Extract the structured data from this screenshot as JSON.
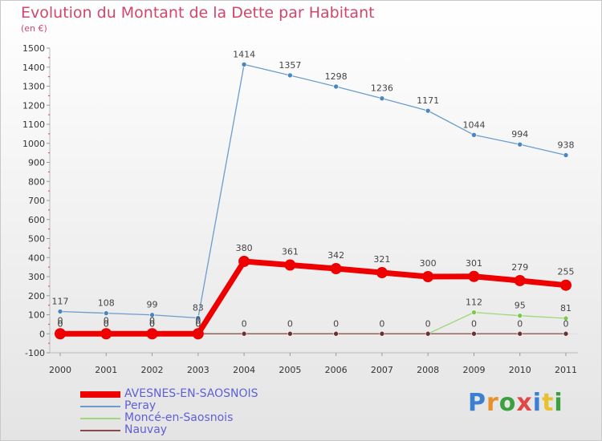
{
  "chart_data": {
    "type": "line",
    "title": "Evolution du Montant de la Dette par Habitant",
    "subtitle": "(en €)",
    "categories": [
      "2000",
      "2001",
      "2002",
      "2003",
      "2004",
      "2005",
      "2006",
      "2007",
      "2008",
      "2009",
      "2010",
      "2011"
    ],
    "ylim": [
      -100,
      1500
    ],
    "yticks": [
      -100,
      0,
      100,
      200,
      300,
      400,
      500,
      600,
      700,
      800,
      900,
      1000,
      1100,
      1200,
      1300,
      1400,
      1500
    ],
    "grid": false,
    "legend_position": "bottom-left",
    "series": [
      {
        "name": "Peray",
        "color": "#6b9ccb",
        "marker": "#4a86c0",
        "values": [
          117,
          108,
          99,
          83,
          1414,
          1357,
          1298,
          1236,
          1171,
          1044,
          994,
          938
        ],
        "labels": [
          "117",
          "108",
          "99",
          "83",
          "1414",
          "1357",
          "1298",
          "1236",
          "1171",
          "1044",
          "994",
          "938"
        ]
      },
      {
        "name": "Moncé-en-Saosnois",
        "color": "#9ed87a",
        "marker": "#7cc84a",
        "values": [
          0,
          0,
          0,
          0,
          0,
          0,
          0,
          0,
          0,
          112,
          95,
          81
        ],
        "labels": [
          "0",
          "0",
          "0",
          "0",
          "",
          "",
          "",
          "",
          "",
          "112",
          "95",
          "81"
        ]
      },
      {
        "name": "Nauvay",
        "color": "#8a4a4a",
        "marker": "#6b3030",
        "values": [
          0,
          0,
          0,
          0,
          0,
          0,
          0,
          0,
          0,
          0,
          0,
          0
        ],
        "labels": [
          "0",
          "0",
          "0",
          "0",
          "0",
          "0",
          "0",
          "0",
          "0",
          "0",
          "0",
          "0"
        ]
      },
      {
        "name": "AVESNES-EN-SAOSNOIS",
        "color": "#ee0000",
        "marker": "#ee0000",
        "values": [
          0,
          0,
          0,
          0,
          380,
          361,
          342,
          321,
          300,
          301,
          279,
          255
        ],
        "labels": [
          "0",
          "0",
          "0",
          "0",
          "380",
          "361",
          "342",
          "321",
          "300",
          "301",
          "279",
          "255"
        ]
      }
    ],
    "legend": [
      {
        "name": "AVESNES-EN-SAOSNOIS",
        "color": "#ee0000"
      },
      {
        "name": "Peray",
        "color": "#6b9ccb"
      },
      {
        "name": "Moncé-en-Saosnois",
        "color": "#9ed87a"
      },
      {
        "name": "Nauvay",
        "color": "#8a4a4a"
      }
    ]
  },
  "logo": {
    "letters": [
      "P",
      "r",
      "o",
      "x",
      "i",
      "t",
      "i"
    ],
    "colors": [
      "#3a7fd0",
      "#e8902a",
      "#3aa040",
      "#e04848",
      "#3a7fd0",
      "#e8c030",
      "#3aa040"
    ]
  }
}
